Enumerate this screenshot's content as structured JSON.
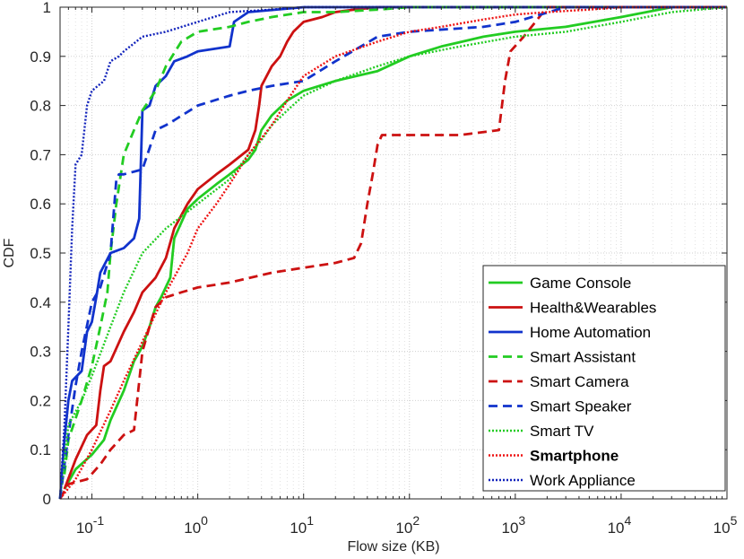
{
  "chart_data": {
    "type": "line",
    "title": "",
    "xlabel": "Flow size (KB)",
    "ylabel": "CDF",
    "x_scale": "log",
    "xlim": [
      0.05,
      100000
    ],
    "ylim": [
      0,
      1
    ],
    "grid": true,
    "legend_position": "bottom-right",
    "x_ticks": [
      {
        "value": 0.1,
        "base": "10",
        "exp": "-1"
      },
      {
        "value": 1,
        "base": "10",
        "exp": "0"
      },
      {
        "value": 10,
        "base": "10",
        "exp": "1"
      },
      {
        "value": 100,
        "base": "10",
        "exp": "2"
      },
      {
        "value": 1000,
        "base": "10",
        "exp": "3"
      },
      {
        "value": 10000,
        "base": "10",
        "exp": "4"
      },
      {
        "value": 100000,
        "base": "10",
        "exp": "5"
      }
    ],
    "y_ticks": [
      {
        "value": 0,
        "label": "0"
      },
      {
        "value": 0.1,
        "label": "0.1"
      },
      {
        "value": 0.2,
        "label": "0.2"
      },
      {
        "value": 0.3,
        "label": "0.3"
      },
      {
        "value": 0.4,
        "label": "0.4"
      },
      {
        "value": 0.5,
        "label": "0.5"
      },
      {
        "value": 0.6,
        "label": "0.6"
      },
      {
        "value": 0.7,
        "label": "0.7"
      },
      {
        "value": 0.8,
        "label": "0.8"
      },
      {
        "value": 0.9,
        "label": "0.9"
      },
      {
        "value": 1,
        "label": "1"
      }
    ],
    "series": [
      {
        "name": "Game Console",
        "color": "#22cc22",
        "dash": "solid",
        "bold": false,
        "x": [
          0.055,
          0.07,
          0.1,
          0.13,
          0.15,
          0.2,
          0.25,
          0.3,
          0.35,
          0.4,
          0.45,
          0.55,
          0.58,
          0.6,
          0.8,
          1,
          1.5,
          2,
          3,
          3.5,
          4,
          5,
          7,
          10,
          20,
          50,
          100,
          200,
          500,
          1000,
          3000,
          10000,
          30000,
          100000
        ],
        "y": [
          0.02,
          0.06,
          0.09,
          0.12,
          0.16,
          0.22,
          0.28,
          0.31,
          0.35,
          0.39,
          0.41,
          0.45,
          0.5,
          0.53,
          0.59,
          0.61,
          0.64,
          0.66,
          0.69,
          0.71,
          0.75,
          0.78,
          0.81,
          0.83,
          0.85,
          0.87,
          0.9,
          0.92,
          0.94,
          0.95,
          0.96,
          0.98,
          1.0,
          1.0
        ]
      },
      {
        "name": "Health&Wearables",
        "color": "#cc1111",
        "dash": "solid",
        "bold": false,
        "x": [
          0.055,
          0.07,
          0.09,
          0.11,
          0.12,
          0.13,
          0.15,
          0.2,
          0.25,
          0.3,
          0.4,
          0.5,
          0.6,
          0.8,
          1,
          1.5,
          2,
          3,
          3.5,
          3.8,
          4,
          5,
          6,
          7,
          8,
          10,
          15,
          20,
          30,
          50,
          100,
          1000,
          100000
        ],
        "y": [
          0.02,
          0.08,
          0.13,
          0.15,
          0.22,
          0.27,
          0.28,
          0.34,
          0.38,
          0.42,
          0.45,
          0.49,
          0.55,
          0.6,
          0.63,
          0.66,
          0.68,
          0.71,
          0.75,
          0.8,
          0.84,
          0.88,
          0.9,
          0.93,
          0.95,
          0.97,
          0.98,
          0.99,
          0.995,
          1.0,
          1.0,
          1.0,
          1.0
        ]
      },
      {
        "name": "Home Automation",
        "color": "#1133cc",
        "dash": "solid",
        "bold": false,
        "x": [
          0.05,
          0.055,
          0.06,
          0.065,
          0.08,
          0.09,
          0.1,
          0.11,
          0.12,
          0.15,
          0.2,
          0.25,
          0.28,
          0.3,
          0.35,
          0.4,
          0.5,
          0.6,
          0.8,
          1,
          2,
          2.2,
          3,
          10,
          100,
          1000,
          100000
        ],
        "y": [
          0.0,
          0.12,
          0.2,
          0.24,
          0.26,
          0.34,
          0.36,
          0.41,
          0.46,
          0.5,
          0.51,
          0.53,
          0.57,
          0.79,
          0.8,
          0.84,
          0.86,
          0.89,
          0.9,
          0.91,
          0.92,
          0.97,
          0.99,
          1.0,
          1.0,
          1.0,
          1.0
        ]
      },
      {
        "name": "Smart Assistant",
        "color": "#22cc22",
        "dash": "dashed",
        "bold": false,
        "x": [
          0.055,
          0.06,
          0.08,
          0.1,
          0.12,
          0.14,
          0.15,
          0.17,
          0.2,
          0.25,
          0.3,
          0.4,
          0.5,
          0.7,
          1,
          2,
          3,
          5,
          10,
          20,
          50,
          100,
          1000,
          100000
        ],
        "y": [
          0.05,
          0.12,
          0.2,
          0.27,
          0.35,
          0.42,
          0.5,
          0.6,
          0.7,
          0.75,
          0.79,
          0.83,
          0.88,
          0.93,
          0.95,
          0.96,
          0.97,
          0.98,
          0.99,
          0.99,
          0.995,
          1.0,
          1.0,
          1.0
        ]
      },
      {
        "name": "Smart Camera",
        "color": "#cc1111",
        "dash": "dashed",
        "bold": false,
        "x": [
          0.05,
          0.06,
          0.09,
          0.12,
          0.15,
          0.2,
          0.25,
          0.3,
          0.35,
          0.4,
          0.5,
          0.7,
          1,
          2,
          5,
          10,
          20,
          30,
          35,
          40,
          45,
          50,
          55,
          100,
          300,
          700,
          800,
          900,
          1200,
          2000,
          100000
        ],
        "y": [
          0.0,
          0.03,
          0.04,
          0.07,
          0.1,
          0.13,
          0.14,
          0.3,
          0.35,
          0.39,
          0.41,
          0.42,
          0.43,
          0.44,
          0.46,
          0.47,
          0.48,
          0.49,
          0.52,
          0.6,
          0.66,
          0.72,
          0.74,
          0.74,
          0.74,
          0.75,
          0.85,
          0.91,
          0.94,
          1.0,
          1.0
        ]
      },
      {
        "name": "Smart Speaker",
        "color": "#1133cc",
        "dash": "dashed",
        "bold": false,
        "x": [
          0.05,
          0.06,
          0.07,
          0.08,
          0.1,
          0.12,
          0.15,
          0.17,
          0.18,
          0.2,
          0.3,
          0.4,
          0.5,
          0.6,
          1,
          2,
          3,
          5,
          10,
          20,
          50,
          100,
          500,
          1000,
          3000,
          100000
        ],
        "y": [
          0.0,
          0.13,
          0.23,
          0.3,
          0.4,
          0.43,
          0.5,
          0.65,
          0.66,
          0.66,
          0.67,
          0.75,
          0.76,
          0.77,
          0.8,
          0.82,
          0.83,
          0.84,
          0.85,
          0.89,
          0.94,
          0.95,
          0.96,
          0.97,
          1.0,
          1.0
        ]
      },
      {
        "name": "Smart TV",
        "color": "#22cc22",
        "dash": "dotted",
        "bold": false,
        "x": [
          0.05,
          0.06,
          0.08,
          0.1,
          0.15,
          0.2,
          0.3,
          0.5,
          1,
          2,
          3,
          4,
          5,
          7,
          10,
          20,
          50,
          100,
          300,
          1000,
          3000,
          10000,
          30000,
          100000
        ],
        "y": [
          0.0,
          0.15,
          0.2,
          0.25,
          0.35,
          0.42,
          0.5,
          0.55,
          0.6,
          0.65,
          0.7,
          0.73,
          0.76,
          0.79,
          0.82,
          0.85,
          0.88,
          0.9,
          0.92,
          0.94,
          0.95,
          0.97,
          0.99,
          1.0
        ]
      },
      {
        "name": "Smartphone",
        "color": "#ee1111",
        "dash": "dotted",
        "bold": true,
        "x": [
          0.05,
          0.07,
          0.1,
          0.15,
          0.2,
          0.3,
          0.5,
          0.8,
          1,
          1.5,
          2,
          3,
          5,
          7,
          10,
          20,
          50,
          100,
          200,
          500,
          1000,
          2000,
          5000,
          10000,
          100000
        ],
        "y": [
          0.0,
          0.04,
          0.1,
          0.18,
          0.24,
          0.32,
          0.42,
          0.5,
          0.55,
          0.6,
          0.64,
          0.7,
          0.76,
          0.81,
          0.86,
          0.9,
          0.93,
          0.95,
          0.96,
          0.975,
          0.985,
          0.99,
          0.995,
          1.0,
          1.0
        ]
      },
      {
        "name": "Work Appliance",
        "color": "#1122bb",
        "dash": "dotted",
        "bold": false,
        "x": [
          0.05,
          0.055,
          0.06,
          0.065,
          0.07,
          0.08,
          0.09,
          0.1,
          0.13,
          0.15,
          0.18,
          0.2,
          0.3,
          0.5,
          1,
          2,
          5,
          10,
          100,
          1000,
          100000
        ],
        "y": [
          0.0,
          0.15,
          0.35,
          0.55,
          0.68,
          0.7,
          0.8,
          0.83,
          0.85,
          0.89,
          0.9,
          0.91,
          0.94,
          0.95,
          0.97,
          0.99,
          0.995,
          1.0,
          1.0,
          1.0,
          1.0
        ]
      }
    ]
  }
}
